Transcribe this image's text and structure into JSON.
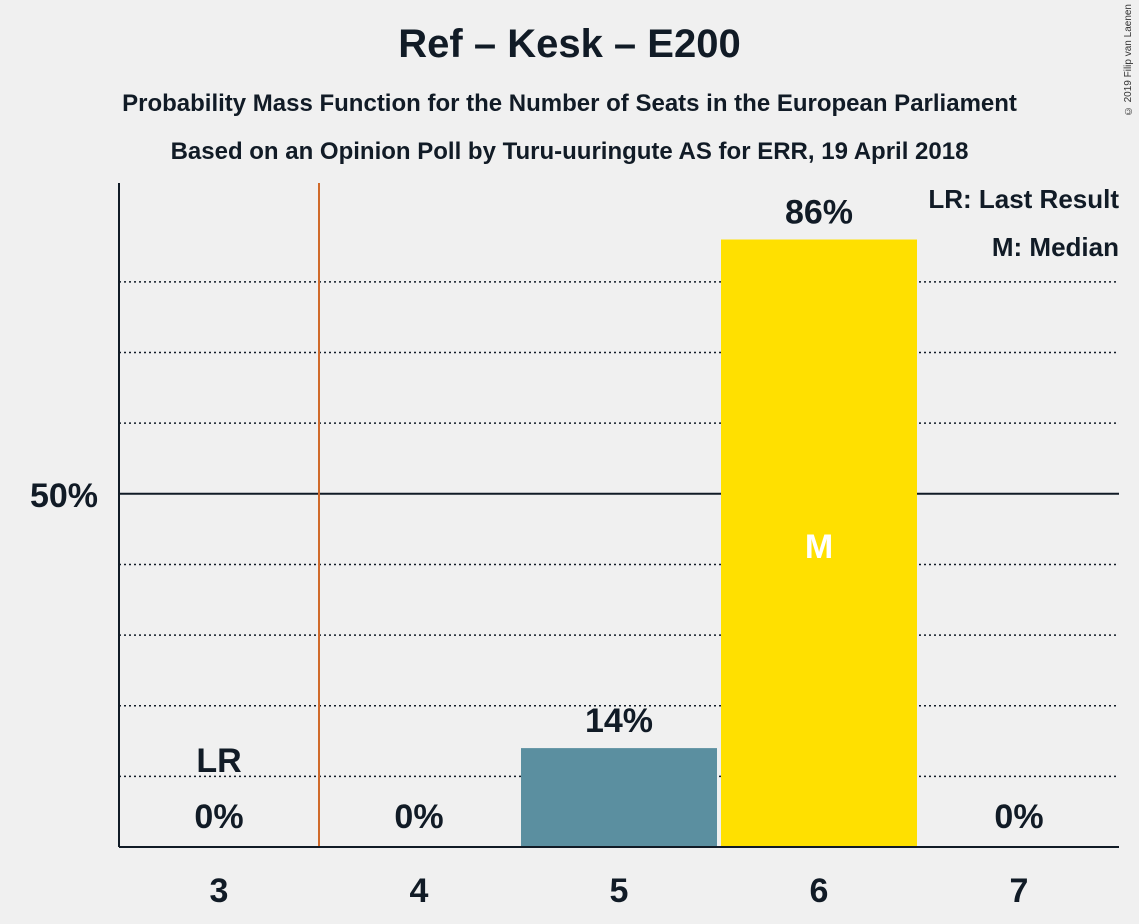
{
  "title": "Ref – Kesk – E200",
  "subtitle_1": "Probability Mass Function for the Number of Seats in the European Parliament",
  "subtitle_2": "Based on an Opinion Poll by Turu-uuringute AS for ERR, 19 April 2018",
  "copyright": "© 2019 Filip van Laenen",
  "legend": {
    "last_result": "LR: Last Result",
    "median": "M: Median",
    "placement": "top-right"
  },
  "colors": {
    "bar_5": "#5b8fa0",
    "bar_6": "#ffe000",
    "last_result_line": "#d06a2a",
    "axis": "#111b26",
    "background": "#f0f0f0"
  },
  "chart_data": {
    "type": "bar",
    "categories": [
      "3",
      "4",
      "5",
      "6",
      "7"
    ],
    "values": [
      0,
      0,
      14,
      86,
      0
    ],
    "value_labels": [
      "0%",
      "0%",
      "14%",
      "86%",
      "0%"
    ],
    "ylim": [
      0,
      94
    ],
    "y_tick_label": "50%",
    "y_tick_value": 50,
    "gridlines": [
      10,
      20,
      30,
      40,
      60,
      70,
      80
    ],
    "last_result": {
      "category": "3",
      "label": "LR",
      "line_between": [
        "3",
        "4"
      ]
    },
    "median": {
      "category": "6",
      "label": "M"
    },
    "grid": true
  }
}
